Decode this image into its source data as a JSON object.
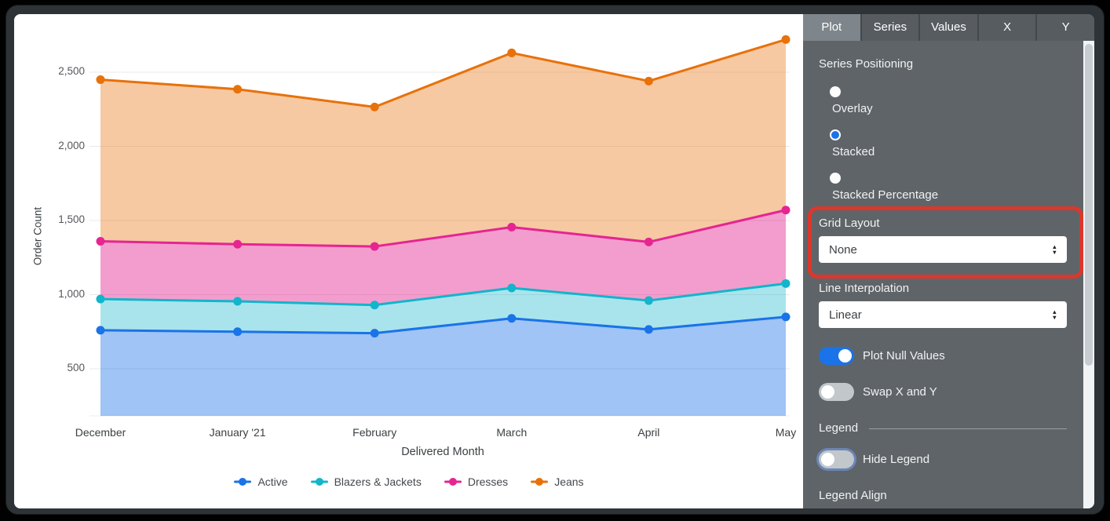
{
  "chart_data": {
    "type": "area",
    "stacked": true,
    "x": [
      "December",
      "January '21",
      "February",
      "March",
      "April",
      "May"
    ],
    "series": [
      {
        "name": "Active",
        "color": "#1A73E8",
        "values": [
          760,
          750,
          740,
          840,
          765,
          850
        ]
      },
      {
        "name": "Blazers & Jackets",
        "color": "#12B5CB",
        "values": [
          210,
          205,
          190,
          205,
          195,
          225
        ]
      },
      {
        "name": "Dresses",
        "color": "#E52592",
        "values": [
          390,
          385,
          395,
          410,
          395,
          495
        ]
      },
      {
        "name": "Jeans",
        "color": "#E8710A",
        "values": [
          1090,
          1045,
          940,
          1175,
          1085,
          1150
        ]
      }
    ],
    "title": "",
    "xlabel": "Delivered Month",
    "ylabel": "Order Count",
    "y_ticks": [
      500,
      1000,
      1500,
      2000,
      2500
    ],
    "grid": true,
    "legend_position": "bottom"
  },
  "panel": {
    "tabs": [
      {
        "label": "Plot",
        "active": true
      },
      {
        "label": "Series",
        "active": false
      },
      {
        "label": "Values",
        "active": false
      },
      {
        "label": "X",
        "active": false
      },
      {
        "label": "Y",
        "active": false
      }
    ],
    "series_positioning": {
      "label": "Series Positioning",
      "options": [
        {
          "label": "Overlay",
          "selected": false
        },
        {
          "label": "Stacked",
          "selected": true
        },
        {
          "label": "Stacked Percentage",
          "selected": false
        }
      ]
    },
    "grid_layout": {
      "label": "Grid Layout",
      "value": "None",
      "highlighted": true
    },
    "line_interpolation": {
      "label": "Line Interpolation",
      "value": "Linear"
    },
    "toggles": [
      {
        "label": "Plot Null Values",
        "on": true
      },
      {
        "label": "Swap X and Y",
        "on": false
      }
    ],
    "legend": {
      "header": "Legend",
      "hide_legend_label": "Hide Legend",
      "hide_legend_on": false,
      "legend_align_label": "Legend Align"
    },
    "colors": {
      "accent": "#1a73e8",
      "highlight_red": "#dc372c"
    }
  }
}
